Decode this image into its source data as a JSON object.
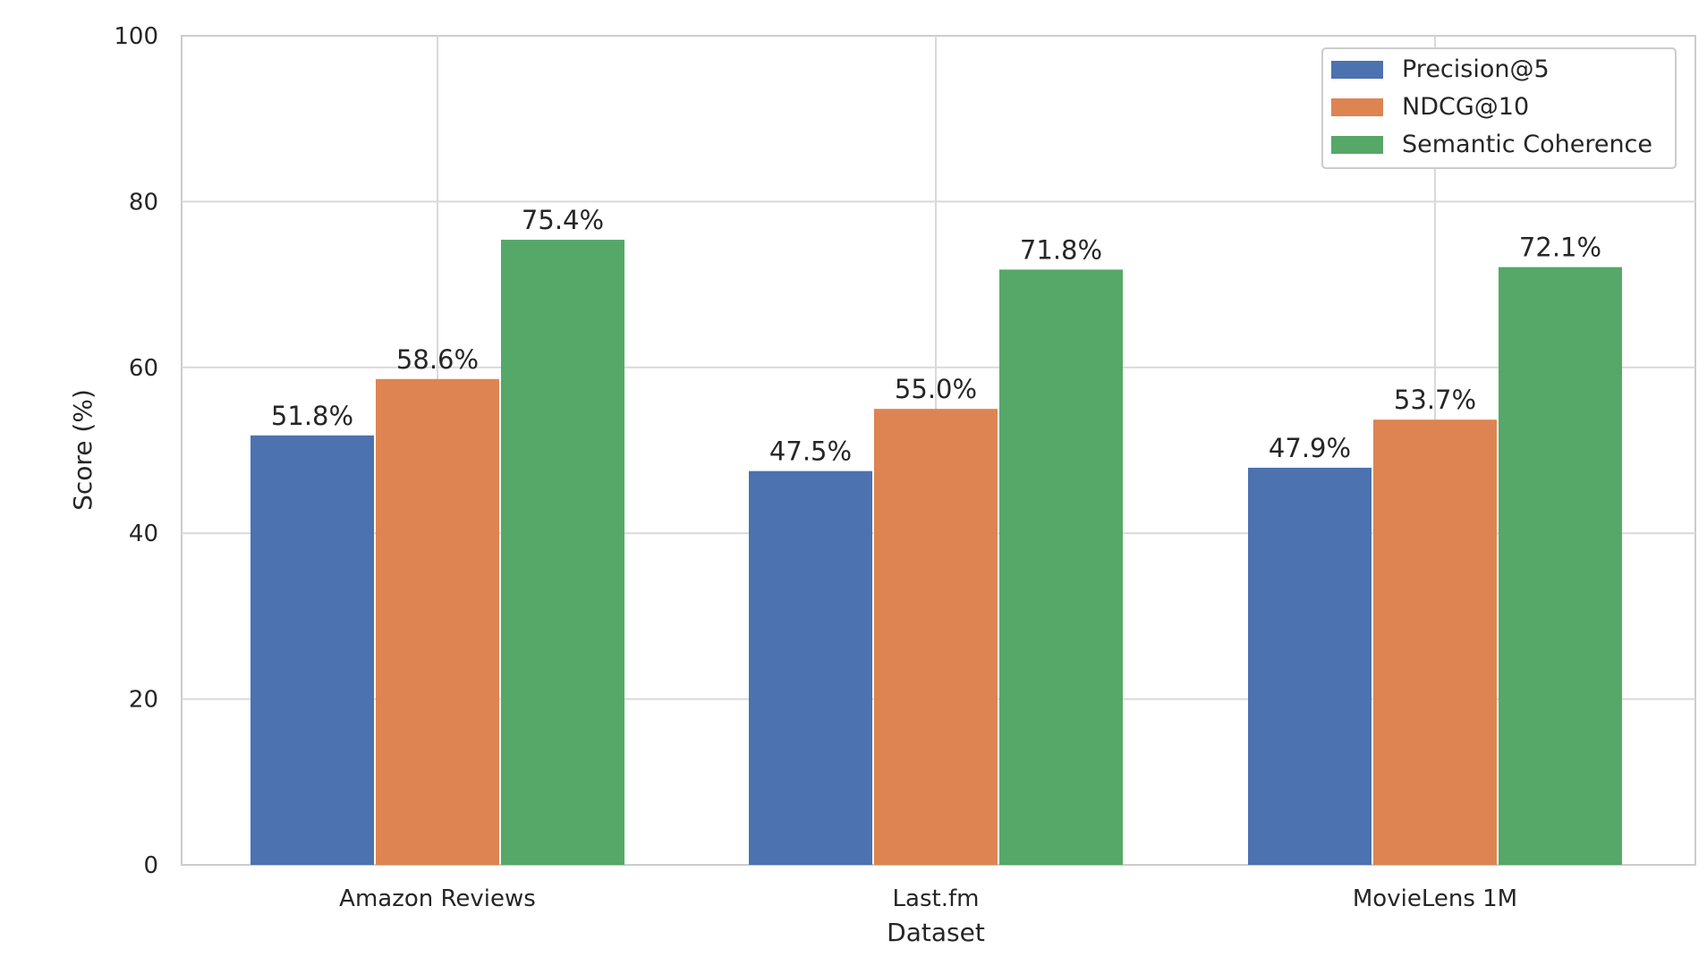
{
  "chart_data": {
    "type": "bar",
    "title": "",
    "xlabel": "Dataset",
    "ylabel": "Score (%)",
    "ylim": [
      0,
      100
    ],
    "yticks": [
      "0",
      "20",
      "40",
      "60",
      "80",
      "100"
    ],
    "grid": true,
    "categories": [
      "Amazon Reviews",
      "Last.fm",
      "MovieLens 1M"
    ],
    "series": [
      {
        "name": "Precision@5",
        "color": "#4c72b0",
        "values": [
          51.8,
          47.5,
          47.9
        ],
        "labels": [
          "51.8%",
          "47.5%",
          "47.9%"
        ]
      },
      {
        "name": "NDCG@10",
        "color": "#dd8452",
        "values": [
          58.6,
          55.0,
          53.7
        ],
        "labels": [
          "58.6%",
          "55.0%",
          "53.7%"
        ]
      },
      {
        "name": "Semantic Coherence",
        "color": "#55a868",
        "values": [
          75.4,
          71.8,
          72.1
        ],
        "labels": [
          "75.4%",
          "71.8%",
          "72.1%"
        ]
      }
    ],
    "legend_position": "top-right"
  }
}
